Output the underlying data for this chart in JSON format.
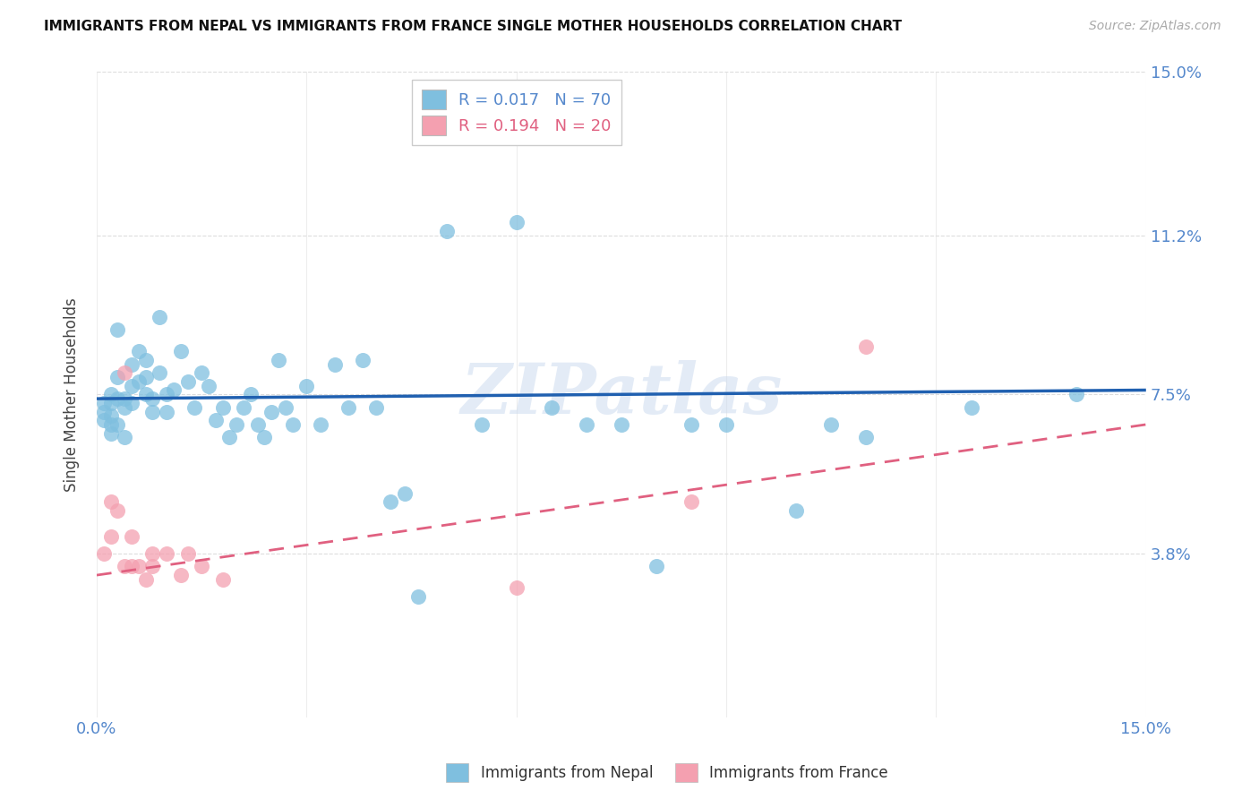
{
  "title": "IMMIGRANTS FROM NEPAL VS IMMIGRANTS FROM FRANCE SINGLE MOTHER HOUSEHOLDS CORRELATION CHART",
  "source": "Source: ZipAtlas.com",
  "ylabel": "Single Mother Households",
  "xlim": [
    0.0,
    0.15
  ],
  "ylim": [
    0.0,
    0.15
  ],
  "watermark": "ZIPatlas",
  "legend_nepal_R": "0.017",
  "legend_nepal_N": "70",
  "legend_france_R": "0.194",
  "legend_france_N": "20",
  "nepal_color": "#7fbfdf",
  "france_color": "#f4a0b0",
  "nepal_line_color": "#2060b0",
  "france_line_color": "#e06080",
  "axis_label_color": "#5588cc",
  "grid_color": "#dddddd",
  "nepal_x": [
    0.001,
    0.001,
    0.001,
    0.002,
    0.002,
    0.002,
    0.002,
    0.002,
    0.003,
    0.003,
    0.003,
    0.003,
    0.004,
    0.004,
    0.004,
    0.005,
    0.005,
    0.005,
    0.006,
    0.006,
    0.007,
    0.007,
    0.007,
    0.008,
    0.008,
    0.009,
    0.009,
    0.01,
    0.01,
    0.011,
    0.012,
    0.013,
    0.014,
    0.015,
    0.016,
    0.017,
    0.018,
    0.019,
    0.02,
    0.021,
    0.022,
    0.023,
    0.024,
    0.025,
    0.026,
    0.027,
    0.028,
    0.03,
    0.032,
    0.034,
    0.036,
    0.038,
    0.04,
    0.042,
    0.044,
    0.046,
    0.05,
    0.055,
    0.06,
    0.065,
    0.07,
    0.075,
    0.08,
    0.085,
    0.09,
    0.1,
    0.105,
    0.11,
    0.125,
    0.14
  ],
  "nepal_y": [
    0.073,
    0.071,
    0.069,
    0.075,
    0.073,
    0.07,
    0.068,
    0.066,
    0.09,
    0.079,
    0.074,
    0.068,
    0.074,
    0.072,
    0.065,
    0.082,
    0.077,
    0.073,
    0.085,
    0.078,
    0.083,
    0.079,
    0.075,
    0.074,
    0.071,
    0.093,
    0.08,
    0.075,
    0.071,
    0.076,
    0.085,
    0.078,
    0.072,
    0.08,
    0.077,
    0.069,
    0.072,
    0.065,
    0.068,
    0.072,
    0.075,
    0.068,
    0.065,
    0.071,
    0.083,
    0.072,
    0.068,
    0.077,
    0.068,
    0.082,
    0.072,
    0.083,
    0.072,
    0.05,
    0.052,
    0.028,
    0.113,
    0.068,
    0.115,
    0.072,
    0.068,
    0.068,
    0.035,
    0.068,
    0.068,
    0.048,
    0.068,
    0.065,
    0.072,
    0.075
  ],
  "france_x": [
    0.001,
    0.002,
    0.002,
    0.003,
    0.004,
    0.004,
    0.005,
    0.005,
    0.006,
    0.007,
    0.008,
    0.008,
    0.01,
    0.012,
    0.013,
    0.015,
    0.018,
    0.06,
    0.085,
    0.11
  ],
  "france_y": [
    0.038,
    0.05,
    0.042,
    0.048,
    0.08,
    0.035,
    0.042,
    0.035,
    0.035,
    0.032,
    0.038,
    0.035,
    0.038,
    0.033,
    0.038,
    0.035,
    0.032,
    0.03,
    0.05,
    0.086
  ],
  "nepal_line_start_y": 0.074,
  "nepal_line_end_y": 0.076,
  "france_line_start_y": 0.033,
  "france_line_end_y": 0.068
}
